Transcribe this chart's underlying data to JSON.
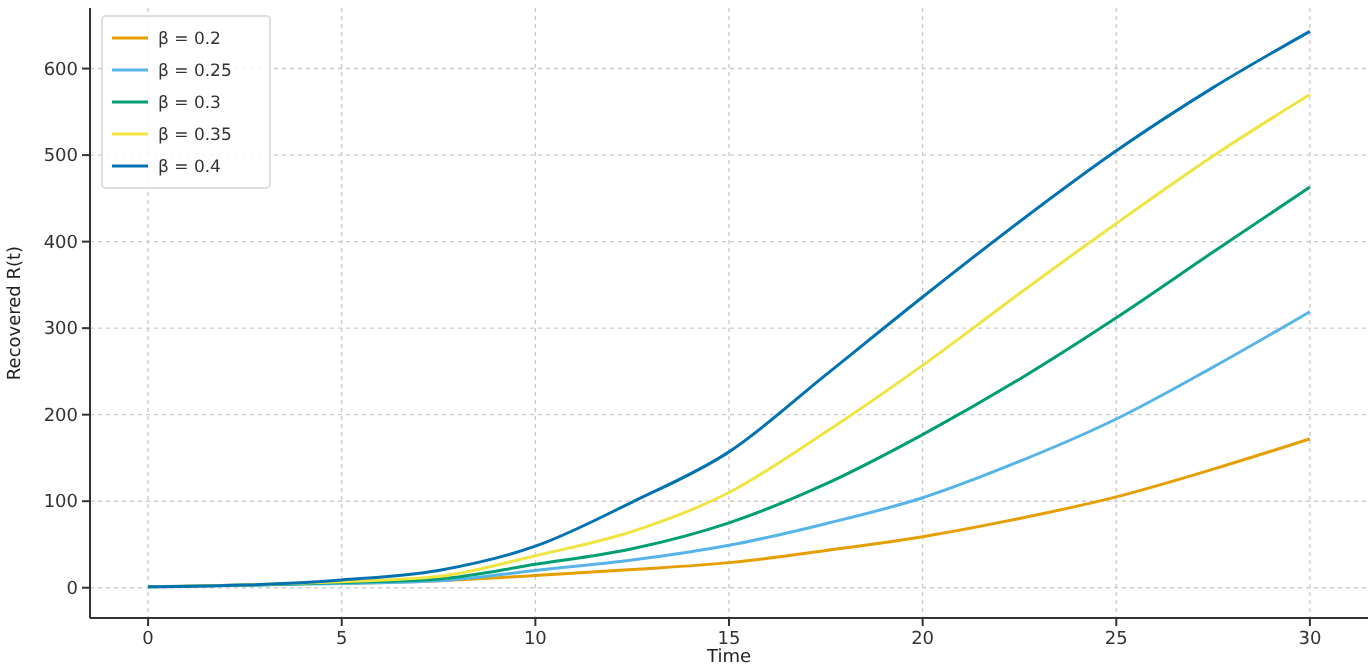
{
  "chart_data": {
    "type": "line",
    "xlabel": "Time",
    "ylabel": "Recovered R(t)",
    "x": [
      0,
      2.5,
      5,
      7.5,
      10,
      12.5,
      15,
      17.5,
      20,
      22.5,
      25,
      27.5,
      30
    ],
    "series": [
      {
        "name": "β = 0.2",
        "color": "#e69f00",
        "values": [
          null,
          null,
          5,
          8,
          14,
          21,
          29,
          43,
          59,
          80,
          105,
          137,
          172
        ]
      },
      {
        "name": "β = 0.25",
        "color": "#56b4e9",
        "values": [
          1,
          3,
          5,
          8,
          20,
          32,
          49,
          74,
          104,
          146,
          195,
          255,
          319
        ]
      },
      {
        "name": "β = 0.3",
        "color": "#009e73",
        "values": [
          1,
          3,
          6,
          10,
          27,
          45,
          75,
          120,
          177,
          241,
          312,
          388,
          463
        ]
      },
      {
        "name": "β = 0.35",
        "color": "#f0e442",
        "values": [
          1,
          3,
          7,
          13,
          37,
          65,
          110,
          180,
          257,
          340,
          421,
          499,
          570
        ]
      },
      {
        "name": "β = 0.4",
        "color": "#0072b2",
        "values": [
          1,
          3,
          9,
          20,
          48,
          99,
          157,
          246,
          336,
          423,
          505,
          578,
          643
        ]
      }
    ],
    "xlim": [
      -1.5,
      31.5
    ],
    "ylim": [
      -35,
      670
    ],
    "xticks": [
      0,
      5,
      10,
      15,
      20,
      25,
      30
    ],
    "yticks": [
      0,
      100,
      200,
      300,
      400,
      500,
      600
    ],
    "grid": true,
    "legend": "top left",
    "line_style": "solid",
    "marker": "none"
  }
}
